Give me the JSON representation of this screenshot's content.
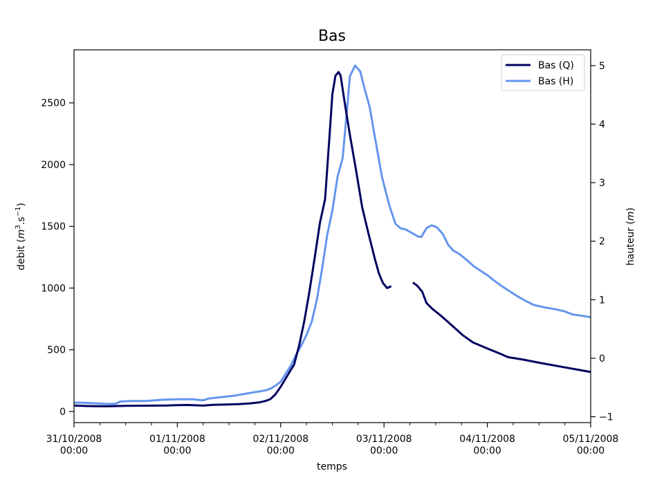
{
  "chart_data": {
    "type": "line",
    "title": "Bas",
    "xlabel": "temps",
    "ylabel_left": "debit (m³.s⁻¹)",
    "ylabel_left_parts": {
      "prefix": "debit (",
      "m": "m",
      "exp1": "3",
      "mid": ".s",
      "exp2": "−1",
      "suffix": ")"
    },
    "ylabel_right": "hauteur (m)",
    "ylabel_right_parts": {
      "prefix": "hauteur (",
      "m": "m",
      "suffix": ")"
    },
    "x_ticks": [
      {
        "date": "31/10/2008",
        "time": "00:00",
        "day": 0
      },
      {
        "date": "01/11/2008",
        "time": "00:00",
        "day": 1
      },
      {
        "date": "02/11/2008",
        "time": "00:00",
        "day": 2
      },
      {
        "date": "03/11/2008",
        "time": "00:00",
        "day": 3
      },
      {
        "date": "04/11/2008",
        "time": "00:00",
        "day": 4
      },
      {
        "date": "05/11/2008",
        "time": "00:00",
        "day": 5
      }
    ],
    "x_minor_ticks_days": [
      0.25,
      0.5,
      0.75,
      1.25,
      1.5,
      1.75,
      2.25,
      2.5,
      2.75,
      3.25,
      3.5,
      3.75,
      4.25,
      4.5,
      4.75
    ],
    "xlim_days": [
      0,
      5
    ],
    "y_left_ticks": [
      0,
      500,
      1000,
      1500,
      2000,
      2500
    ],
    "y_left_lim": [
      -90,
      2930
    ],
    "y_right_ticks": [
      -1,
      0,
      1,
      2,
      3,
      4,
      5
    ],
    "y_right_lim": [
      -1.1,
      5.27
    ],
    "grid": false,
    "legend_position": "top-right",
    "series": [
      {
        "name": "Bas (Q)",
        "axis": "left",
        "color": "#000060",
        "segments": [
          [
            [
              0.0,
              48
            ],
            [
              0.1,
              45
            ],
            [
              0.2,
              43
            ],
            [
              0.3,
              42
            ],
            [
              0.4,
              44
            ],
            [
              0.5,
              46
            ],
            [
              0.7,
              47
            ],
            [
              0.9,
              49
            ],
            [
              1.0,
              52
            ],
            [
              1.1,
              53
            ],
            [
              1.25,
              48
            ],
            [
              1.35,
              54
            ],
            [
              1.5,
              57
            ],
            [
              1.6,
              60
            ],
            [
              1.7,
              65
            ],
            [
              1.8,
              75
            ],
            [
              1.85,
              85
            ],
            [
              1.9,
              100
            ],
            [
              1.95,
              140
            ],
            [
              2.0,
              200
            ],
            [
              2.05,
              270
            ],
            [
              2.1,
              340
            ],
            [
              2.13,
              380
            ],
            [
              2.18,
              540
            ],
            [
              2.23,
              740
            ],
            [
              2.28,
              980
            ],
            [
              2.33,
              1250
            ],
            [
              2.38,
              1530
            ],
            [
              2.43,
              1720
            ],
            [
              2.48,
              2320
            ],
            [
              2.5,
              2570
            ],
            [
              2.53,
              2720
            ],
            [
              2.56,
              2750
            ],
            [
              2.58,
              2720
            ],
            [
              2.62,
              2500
            ],
            [
              2.67,
              2240
            ],
            [
              2.73,
              1950
            ],
            [
              2.79,
              1650
            ],
            [
              2.85,
              1440
            ],
            [
              2.91,
              1240
            ],
            [
              2.95,
              1120
            ],
            [
              2.99,
              1040
            ],
            [
              3.03,
              1000
            ],
            [
              3.07,
              1015
            ]
          ],
          [
            [
              3.28,
              1045
            ],
            [
              3.32,
              1020
            ],
            [
              3.37,
              970
            ],
            [
              3.41,
              880
            ],
            [
              3.47,
              830
            ],
            [
              3.53,
              790
            ],
            [
              3.6,
              740
            ],
            [
              3.68,
              680
            ],
            [
              3.76,
              620
            ],
            [
              3.86,
              560
            ],
            [
              4.0,
              510
            ],
            [
              4.12,
              470
            ],
            [
              4.2,
              440
            ],
            [
              4.35,
              420
            ],
            [
              4.5,
              395
            ],
            [
              4.7,
              365
            ],
            [
              4.9,
              335
            ],
            [
              5.1,
              305
            ],
            [
              5.3,
              270
            ],
            [
              5.5,
              250
            ],
            [
              5.65,
              245
            ],
            [
              5.75,
              240
            ]
          ]
        ]
      },
      {
        "name": "Bas (H)",
        "axis": "right",
        "color": "#6495ED",
        "segments": [
          [
            [
              0.0,
              -0.76
            ],
            [
              0.1,
              -0.76
            ],
            [
              0.2,
              -0.77
            ],
            [
              0.3,
              -0.78
            ],
            [
              0.4,
              -0.78
            ],
            [
              0.45,
              -0.74
            ],
            [
              0.55,
              -0.73
            ],
            [
              0.7,
              -0.73
            ],
            [
              0.85,
              -0.71
            ],
            [
              1.0,
              -0.7
            ],
            [
              1.15,
              -0.7
            ],
            [
              1.25,
              -0.72
            ],
            [
              1.3,
              -0.69
            ],
            [
              1.45,
              -0.66
            ],
            [
              1.55,
              -0.64
            ],
            [
              1.65,
              -0.61
            ],
            [
              1.75,
              -0.58
            ],
            [
              1.85,
              -0.55
            ],
            [
              1.9,
              -0.52
            ],
            [
              1.95,
              -0.47
            ],
            [
              2.0,
              -0.4
            ],
            [
              2.05,
              -0.26
            ],
            [
              2.1,
              -0.12
            ],
            [
              2.15,
              0.06
            ],
            [
              2.2,
              0.22
            ],
            [
              2.25,
              0.4
            ],
            [
              2.3,
              0.62
            ],
            [
              2.35,
              1.0
            ],
            [
              2.4,
              1.52
            ],
            [
              2.45,
              2.1
            ],
            [
              2.5,
              2.52
            ],
            [
              2.55,
              3.1
            ],
            [
              2.6,
              3.42
            ],
            [
              2.64,
              4.2
            ],
            [
              2.67,
              4.82
            ],
            [
              2.72,
              5.0
            ],
            [
              2.77,
              4.9
            ],
            [
              2.81,
              4.62
            ],
            [
              2.86,
              4.3
            ],
            [
              2.92,
              3.7
            ],
            [
              2.98,
              3.1
            ],
            [
              3.05,
              2.62
            ],
            [
              3.11,
              2.3
            ],
            [
              3.16,
              2.22
            ],
            [
              3.21,
              2.2
            ],
            [
              3.27,
              2.14
            ],
            [
              3.33,
              2.08
            ],
            [
              3.36,
              2.07
            ],
            [
              3.41,
              2.22
            ],
            [
              3.46,
              2.27
            ],
            [
              3.51,
              2.24
            ],
            [
              3.57,
              2.12
            ],
            [
              3.62,
              1.94
            ],
            [
              3.67,
              1.84
            ],
            [
              3.73,
              1.78
            ],
            [
              3.8,
              1.68
            ],
            [
              3.87,
              1.57
            ],
            [
              3.93,
              1.5
            ],
            [
              4.0,
              1.42
            ],
            [
              4.07,
              1.32
            ],
            [
              4.15,
              1.22
            ],
            [
              4.22,
              1.14
            ],
            [
              4.3,
              1.05
            ],
            [
              4.37,
              0.98
            ],
            [
              4.45,
              0.91
            ],
            [
              4.55,
              0.87
            ],
            [
              4.65,
              0.84
            ],
            [
              4.75,
              0.8
            ],
            [
              4.82,
              0.75
            ],
            [
              4.9,
              0.73
            ],
            [
              5.0,
              0.7
            ],
            [
              5.1,
              0.65
            ],
            [
              5.2,
              0.6
            ],
            [
              5.3,
              0.55
            ],
            [
              5.4,
              0.48
            ],
            [
              5.5,
              0.38
            ],
            [
              5.6,
              0.33
            ],
            [
              5.7,
              0.26
            ],
            [
              5.8,
              0.23
            ],
            [
              5.9,
              0.21
            ],
            [
              6.0,
              0.19
            ],
            [
              6.1,
              0.18
            ],
            [
              6.2,
              0.16
            ]
          ]
        ]
      }
    ]
  }
}
